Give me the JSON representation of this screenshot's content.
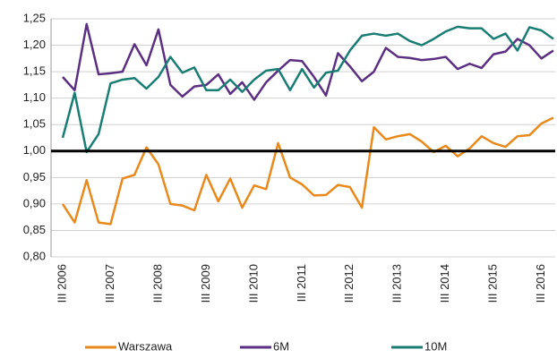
{
  "chart_data": {
    "type": "line",
    "categories": [
      "III 2006",
      null,
      null,
      null,
      "III 2007",
      null,
      null,
      null,
      "III 2008",
      null,
      null,
      null,
      "III 2009",
      null,
      null,
      null,
      "III 2010",
      null,
      null,
      null,
      "III 2011",
      null,
      null,
      null,
      "III 2012",
      null,
      null,
      null,
      "III 2013",
      null,
      null,
      null,
      "III 2014",
      null,
      null,
      null,
      "III 2015",
      null,
      null,
      null,
      "III 2016",
      null
    ],
    "series": [
      {
        "name": "Warszawa",
        "color": "#e8891b",
        "values": [
          0.9,
          0.865,
          0.945,
          0.865,
          0.862,
          0.948,
          0.955,
          1.007,
          0.975,
          0.9,
          0.897,
          0.888,
          0.955,
          0.905,
          0.948,
          0.893,
          0.935,
          0.928,
          1.015,
          0.95,
          0.937,
          0.916,
          0.917,
          0.936,
          0.932,
          0.893,
          1.045,
          1.022,
          1.028,
          1.032,
          1.018,
          0.998,
          1.01,
          0.99,
          1.005,
          1.028,
          1.015,
          1.008,
          1.028,
          1.03,
          1.052,
          1.063
        ]
      },
      {
        "name": "6M",
        "color": "#5b2f82",
        "values": [
          1.14,
          1.115,
          1.24,
          1.145,
          1.147,
          1.15,
          1.202,
          1.162,
          1.23,
          1.125,
          1.103,
          1.122,
          1.125,
          1.145,
          1.108,
          1.13,
          1.097,
          1.13,
          1.152,
          1.172,
          1.17,
          1.14,
          1.105,
          1.185,
          1.16,
          1.132,
          1.15,
          1.195,
          1.178,
          1.176,
          1.172,
          1.174,
          1.178,
          1.155,
          1.165,
          1.157,
          1.183,
          1.188,
          1.212,
          1.2,
          1.175,
          1.19
        ]
      },
      {
        "name": "10M",
        "color": "#1a7d74",
        "values": [
          1.025,
          1.11,
          0.998,
          1.032,
          1.128,
          1.135,
          1.138,
          1.118,
          1.14,
          1.178,
          1.148,
          1.158,
          1.115,
          1.115,
          1.135,
          1.112,
          1.135,
          1.152,
          1.155,
          1.115,
          1.155,
          1.12,
          1.148,
          1.152,
          1.19,
          1.218,
          1.222,
          1.218,
          1.222,
          1.208,
          1.2,
          1.212,
          1.226,
          1.235,
          1.232,
          1.232,
          1.212,
          1.222,
          1.19,
          1.234,
          1.228,
          1.212
        ]
      }
    ],
    "reference_line": 1,
    "ylim": [
      0.8,
      1.25
    ],
    "yticks": [
      {
        "value": 0.8,
        "label": "0,80"
      },
      {
        "value": 0.85,
        "label": "0,85"
      },
      {
        "value": 0.9,
        "label": "0,90"
      },
      {
        "value": 0.95,
        "label": "0,95"
      },
      {
        "value": 1,
        "label": "1,00"
      },
      {
        "value": 1.05,
        "label": "1,05"
      },
      {
        "value": 1.1,
        "label": "1,10"
      },
      {
        "value": 1.15,
        "label": "1,15"
      },
      {
        "value": 1.2,
        "label": "1,20"
      },
      {
        "value": 1.25,
        "label": "1,25"
      }
    ],
    "grid": true
  }
}
